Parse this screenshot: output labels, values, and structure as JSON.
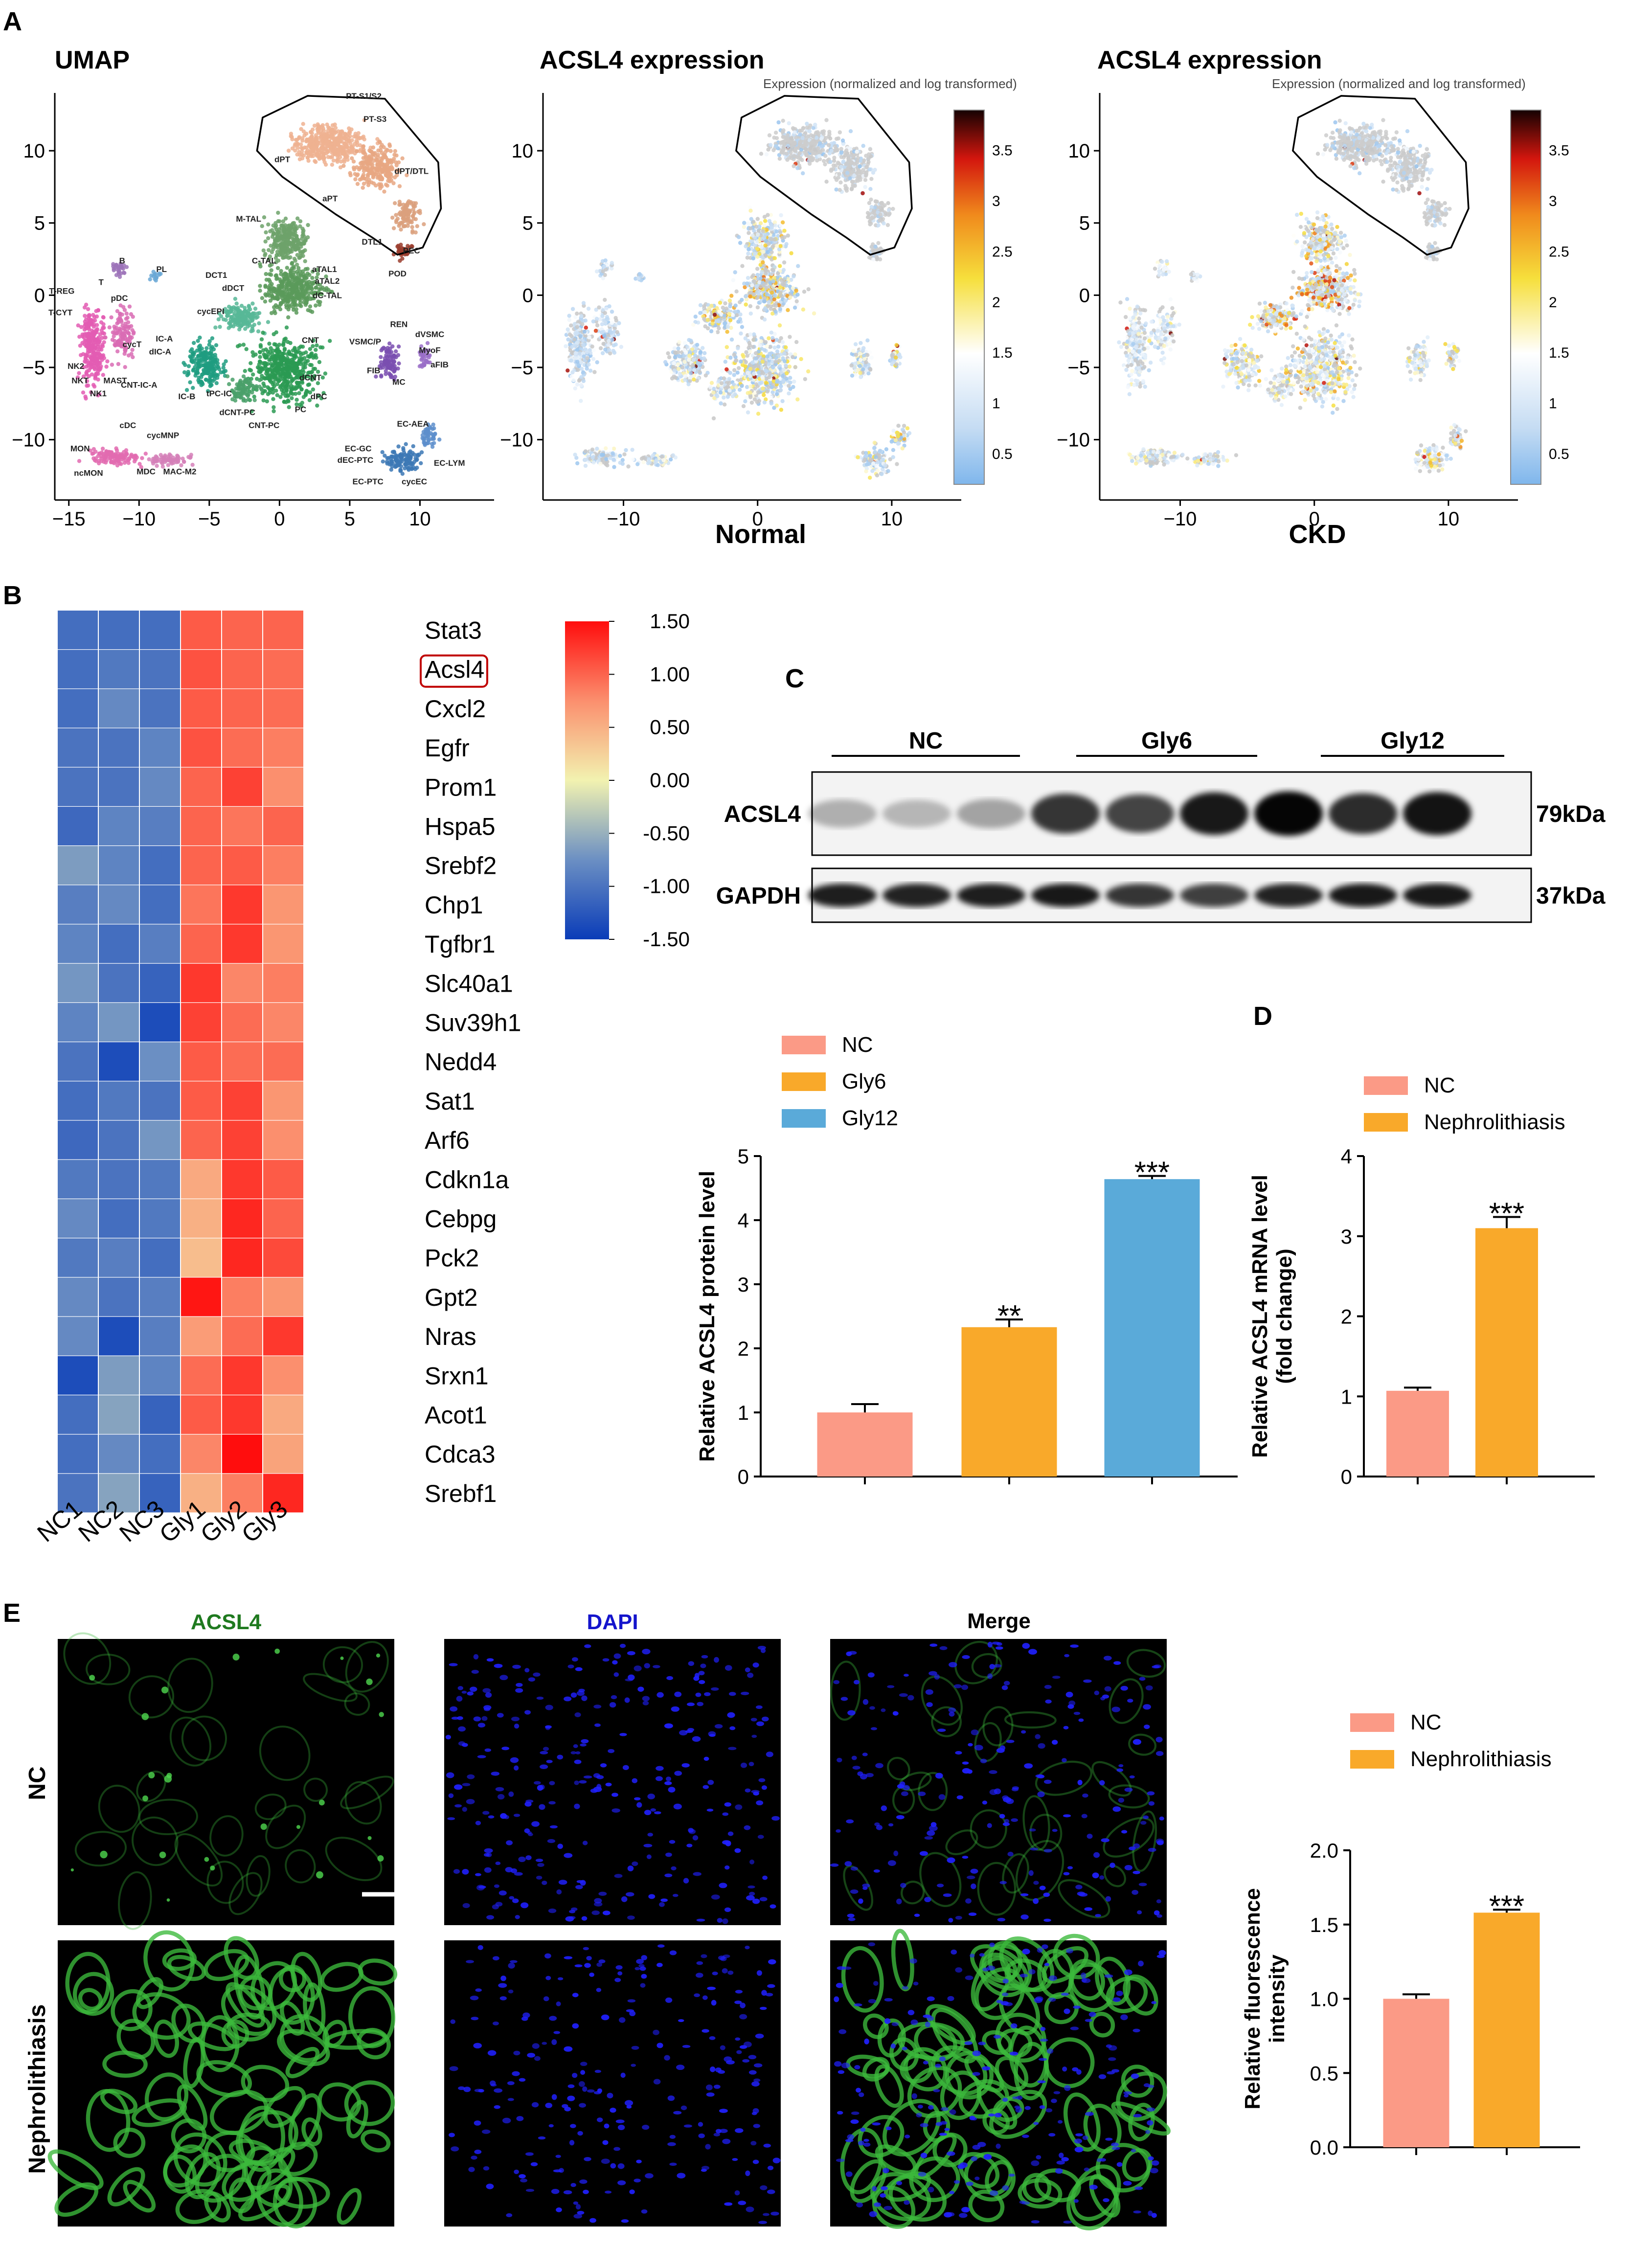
{
  "panel_letters": {
    "a": "A",
    "b": "B",
    "c": "C",
    "d": "D",
    "e": "E"
  },
  "colors": {
    "nc": "#fb9a86",
    "gly6": "#f9a92a",
    "gly12": "#5aaad9",
    "nephro": "#f9a92a"
  },
  "chart_data": [
    {
      "id": "umap",
      "type": "scatter",
      "title": "UMAP",
      "xlabel": "",
      "ylabel": "",
      "xlim": [
        -16,
        15
      ],
      "ylim": [
        -13.5,
        14
      ],
      "xticks": [
        -15,
        -10,
        -5,
        0,
        5,
        10
      ],
      "yticks": [
        -10,
        -5,
        0,
        5,
        10
      ],
      "cluster_labels": [
        {
          "text": "PT-S1/S2",
          "x": 6,
          "y": 13.6
        },
        {
          "text": "PT-S3",
          "x": 6.8,
          "y": 12
        },
        {
          "text": "dPT",
          "x": 0.2,
          "y": 9.2
        },
        {
          "text": "aPT",
          "x": 3.6,
          "y": 6.5
        },
        {
          "text": "dPT/DTL",
          "x": 9.4,
          "y": 8.4
        },
        {
          "text": "DTL1",
          "x": 6.6,
          "y": 3.5
        },
        {
          "text": "PEC",
          "x": 9.4,
          "y": 2.9
        },
        {
          "text": "POD",
          "x": 8.4,
          "y": 1.3
        },
        {
          "text": "M-TAL",
          "x": -2.2,
          "y": 5.1
        },
        {
          "text": "C-TAL",
          "x": -1.1,
          "y": 2.2
        },
        {
          "text": "aTAL1",
          "x": 3.2,
          "y": 1.6
        },
        {
          "text": "aTAL2",
          "x": 3.4,
          "y": 0.8
        },
        {
          "text": "dC-TAL",
          "x": 3.4,
          "y": -0.2
        },
        {
          "text": "dDCT",
          "x": -3.3,
          "y": 0.3
        },
        {
          "text": "DCT1",
          "x": -4.5,
          "y": 1.2
        },
        {
          "text": "cycEPI",
          "x": -4.9,
          "y": -1.3
        },
        {
          "text": "IC-A",
          "x": -8.2,
          "y": -3.2
        },
        {
          "text": "dIC-A",
          "x": -8.5,
          "y": -4.1
        },
        {
          "text": "CNT-IC-A",
          "x": -10,
          "y": -6.4
        },
        {
          "text": "IC-B",
          "x": -6.6,
          "y": -7.2
        },
        {
          "text": "tPC-IC",
          "x": -4.3,
          "y": -7
        },
        {
          "text": "CNT",
          "x": 2.2,
          "y": -3.3
        },
        {
          "text": "dCNT",
          "x": 2.2,
          "y": -5.9
        },
        {
          "text": "dPC",
          "x": 2.8,
          "y": -7.2
        },
        {
          "text": "PC",
          "x": 1.5,
          "y": -8.1
        },
        {
          "text": "dCNT-PC",
          "x": -3,
          "y": -8.3
        },
        {
          "text": "CNT-PC",
          "x": -1.1,
          "y": -9.2
        },
        {
          "text": "B",
          "x": -11.2,
          "y": 2.2
        },
        {
          "text": "PL",
          "x": -8.4,
          "y": 1.6
        },
        {
          "text": "T",
          "x": -12.7,
          "y": 0.7
        },
        {
          "text": "T-REG",
          "x": -15.5,
          "y": 0.1
        },
        {
          "text": "pDC",
          "x": -11.4,
          "y": -0.4
        },
        {
          "text": "T-CYT",
          "x": -15.6,
          "y": -1.4
        },
        {
          "text": "cycT",
          "x": -10.5,
          "y": -3.6
        },
        {
          "text": "NK2",
          "x": -14.5,
          "y": -5.1
        },
        {
          "text": "NKT",
          "x": -14.2,
          "y": -6.1
        },
        {
          "text": "MAST",
          "x": -11.7,
          "y": -6.1
        },
        {
          "text": "NK1",
          "x": -12.9,
          "y": -7
        },
        {
          "text": "REN",
          "x": 8.5,
          "y": -2.2
        },
        {
          "text": "VSMC/P",
          "x": 6.1,
          "y": -3.4
        },
        {
          "text": "dVSMC",
          "x": 10.7,
          "y": -2.9
        },
        {
          "text": "MyoF",
          "x": 10.7,
          "y": -4
        },
        {
          "text": "FIB",
          "x": 6.7,
          "y": -5.4
        },
        {
          "text": "aFIB",
          "x": 11.4,
          "y": -5
        },
        {
          "text": "MC",
          "x": 8.5,
          "y": -6.2
        },
        {
          "text": "cDC",
          "x": -10.8,
          "y": -9.2
        },
        {
          "text": "cycMNP",
          "x": -8.3,
          "y": -9.9
        },
        {
          "text": "MON",
          "x": -14.2,
          "y": -10.8
        },
        {
          "text": "ncMON",
          "x": -13.6,
          "y": -12.5
        },
        {
          "text": "MDC",
          "x": -9.5,
          "y": -12.4
        },
        {
          "text": "MAC-M2",
          "x": -7.1,
          "y": -12.4
        },
        {
          "text": "EC-AEA",
          "x": 9.5,
          "y": -9.1
        },
        {
          "text": "EC-GC",
          "x": 5.6,
          "y": -10.8
        },
        {
          "text": "dEC-PTC",
          "x": 5.4,
          "y": -11.6
        },
        {
          "text": "EC-LYM",
          "x": 12.1,
          "y": -11.8
        },
        {
          "text": "EC-PTC",
          "x": 6.3,
          "y": -13.1
        },
        {
          "text": "cycEC",
          "x": 9.6,
          "y": -13.1
        }
      ]
    },
    {
      "id": "acsl4-normal",
      "type": "scatter",
      "title": "ACSL4 expression",
      "subtitle": "Expression (normalized and log transformed)",
      "xlabel": "Normal",
      "xlim": [
        -16,
        15
      ],
      "ylim": [
        -13.5,
        14
      ],
      "xticks": [
        -10,
        0,
        10
      ],
      "yticks": [
        -10,
        -5,
        0,
        5,
        10
      ],
      "colorbar_range": [
        0.2,
        3.9
      ],
      "colorbar_ticks": [
        0.5,
        1,
        1.5,
        2,
        2.5,
        3,
        3.5
      ],
      "colorbar_tick_labels": [
        "0.5",
        "1",
        "1.5",
        "2",
        "2.5",
        "3",
        "3.5"
      ]
    },
    {
      "id": "acsl4-ckd",
      "type": "scatter",
      "title": "ACSL4 expression",
      "subtitle": "Expression (normalized and log transformed)",
      "xlabel": "CKD",
      "xlim": [
        -16,
        15
      ],
      "ylim": [
        -13.5,
        14
      ],
      "xticks": [
        -10,
        0,
        10
      ],
      "yticks": [
        -10,
        -5,
        0,
        5,
        10
      ],
      "colorbar_range": [
        0.2,
        3.9
      ],
      "colorbar_ticks": [
        0.5,
        1,
        1.5,
        2,
        2.5,
        3,
        3.5
      ],
      "colorbar_tick_labels": [
        "0.5",
        "1",
        "1.5",
        "2",
        "2.5",
        "3",
        "3.5"
      ]
    },
    {
      "id": "heatmap",
      "type": "heatmap",
      "columns": [
        "NC1",
        "NC2",
        "NC3",
        "Gly1",
        "Gly2",
        "Gly3"
      ],
      "genes": [
        "Stat3",
        "Acsl4",
        "Cxcl2",
        "Egfr",
        "Prom1",
        "Hspa5",
        "Srebf2",
        "Chp1",
        "Tgfbr1",
        "Slc40a1",
        "Suv39h1",
        "Nedd4",
        "Sat1",
        "Arf6",
        "Cdkn1a",
        "Cebpg",
        "Pck2",
        "Gpt2",
        "Nras",
        "Srxn1",
        "Acot1",
        "Cdca3",
        "Srebf1"
      ],
      "highlighted_gene": "Acsl4",
      "values": [
        [
          -1.05,
          -1.05,
          -1.05,
          1.05,
          1.0,
          1.0
        ],
        [
          -1.05,
          -0.95,
          -1.0,
          1.1,
          1.0,
          0.95
        ],
        [
          -1.05,
          -0.8,
          -1.0,
          1.05,
          1.0,
          0.95
        ],
        [
          -1.0,
          -1.0,
          -0.85,
          1.1,
          0.95,
          0.85
        ],
        [
          -1.0,
          -1.0,
          -0.8,
          1.0,
          1.2,
          0.75
        ],
        [
          -1.1,
          -0.85,
          -0.9,
          1.0,
          0.9,
          1.0
        ],
        [
          -0.65,
          -0.85,
          -1.05,
          1.0,
          1.05,
          0.85
        ],
        [
          -0.9,
          -0.8,
          -1.05,
          0.9,
          1.25,
          0.7
        ],
        [
          -0.85,
          -1.05,
          -0.9,
          1.0,
          1.25,
          0.7
        ],
        [
          -0.7,
          -1.0,
          -1.15,
          1.25,
          0.8,
          0.85
        ],
        [
          -0.85,
          -0.7,
          -1.35,
          1.2,
          0.95,
          0.8
        ],
        [
          -1.0,
          -1.35,
          -0.75,
          1.05,
          0.95,
          0.95
        ],
        [
          -1.05,
          -0.95,
          -1.0,
          1.05,
          1.2,
          0.7
        ],
        [
          -1.1,
          -1.0,
          -0.7,
          1.0,
          1.2,
          0.75
        ],
        [
          -0.95,
          -1.0,
          -0.95,
          0.55,
          1.25,
          1.05
        ],
        [
          -0.8,
          -1.05,
          -0.95,
          0.5,
          1.35,
          1.0
        ],
        [
          -0.95,
          -0.9,
          -1.05,
          0.4,
          1.35,
          1.15
        ],
        [
          -0.8,
          -1.0,
          -0.9,
          1.45,
          0.85,
          0.7
        ],
        [
          -0.8,
          -1.35,
          -0.9,
          0.65,
          0.95,
          1.25
        ],
        [
          -1.35,
          -0.65,
          -0.85,
          0.95,
          1.25,
          0.75
        ],
        [
          -1.05,
          -0.6,
          -1.15,
          1.05,
          1.25,
          0.55
        ],
        [
          -1.05,
          -0.8,
          -1.05,
          0.8,
          1.5,
          0.6
        ],
        [
          -1.0,
          -0.6,
          -1.15,
          0.5,
          0.85,
          1.35
        ]
      ],
      "colorbar_ticks": [
        1.5,
        1.0,
        0.5,
        0.0,
        -0.5,
        -1.0,
        -1.5
      ],
      "colorbar_tick_labels": [
        "1.50",
        "1.00",
        "0.50",
        "0.00",
        "-0.50",
        "-1.00",
        "-1.50"
      ]
    },
    {
      "id": "western-blot",
      "type": "blot",
      "groups": [
        "NC",
        "Gly6",
        "Gly12"
      ],
      "rows": [
        {
          "label": "ACSL4",
          "size": "79kDa",
          "intensities": [
            0.28,
            0.25,
            0.33,
            0.78,
            0.72,
            0.9,
            0.98,
            0.82,
            0.92
          ]
        },
        {
          "label": "GAPDH",
          "size": "37kDa",
          "intensities": [
            0.88,
            0.86,
            0.88,
            0.9,
            0.78,
            0.74,
            0.86,
            0.9,
            0.9
          ]
        }
      ]
    },
    {
      "id": "protein-level",
      "type": "bar",
      "categories": [
        "NC",
        "Gly6",
        "Gly12"
      ],
      "values": [
        1.0,
        2.33,
        4.64
      ],
      "errors": [
        0.13,
        0.12,
        0.05
      ],
      "significance": [
        "",
        "**",
        "***"
      ],
      "ylabel": "Relative ACSL4 protein level",
      "ylim": [
        0,
        5
      ],
      "yticks": [
        0,
        1,
        2,
        3,
        4,
        5
      ],
      "legend": [
        "NC",
        "Gly6",
        "Gly12"
      ]
    },
    {
      "id": "mrna-level",
      "type": "bar",
      "categories": [
        "NC",
        "Nephrolithiasis"
      ],
      "values": [
        1.07,
        3.1
      ],
      "errors": [
        0.04,
        0.14
      ],
      "significance": [
        "",
        "***"
      ],
      "ylabel": "Relative ACSL4 mRNA level",
      "ylabel2": "(fold change)",
      "ylim": [
        0,
        4
      ],
      "yticks": [
        0,
        1,
        2,
        3,
        4
      ],
      "legend": [
        "NC",
        "Nephrolithiasis"
      ]
    },
    {
      "id": "fluorescence",
      "type": "bar",
      "categories": [
        "NC",
        "Nephrolithiasis"
      ],
      "values": [
        1.0,
        1.58
      ],
      "errors": [
        0.03,
        0.02
      ],
      "significance": [
        "",
        "***"
      ],
      "ylabel": "Relative fluorescence",
      "ylabel2": "intensity",
      "ylim": [
        0,
        2
      ],
      "yticks": [
        0.0,
        0.5,
        1.0,
        1.5,
        2.0
      ],
      "ytick_labels": [
        "0.0",
        "0.5",
        "1.0",
        "1.5",
        "2.0"
      ],
      "legend": [
        "NC",
        "Nephrolithiasis"
      ]
    }
  ],
  "microscopy": {
    "column_titles": [
      "ACSL4",
      "DAPI",
      "Merge"
    ],
    "row_labels": [
      "NC",
      "Nephrolithiasis"
    ]
  }
}
